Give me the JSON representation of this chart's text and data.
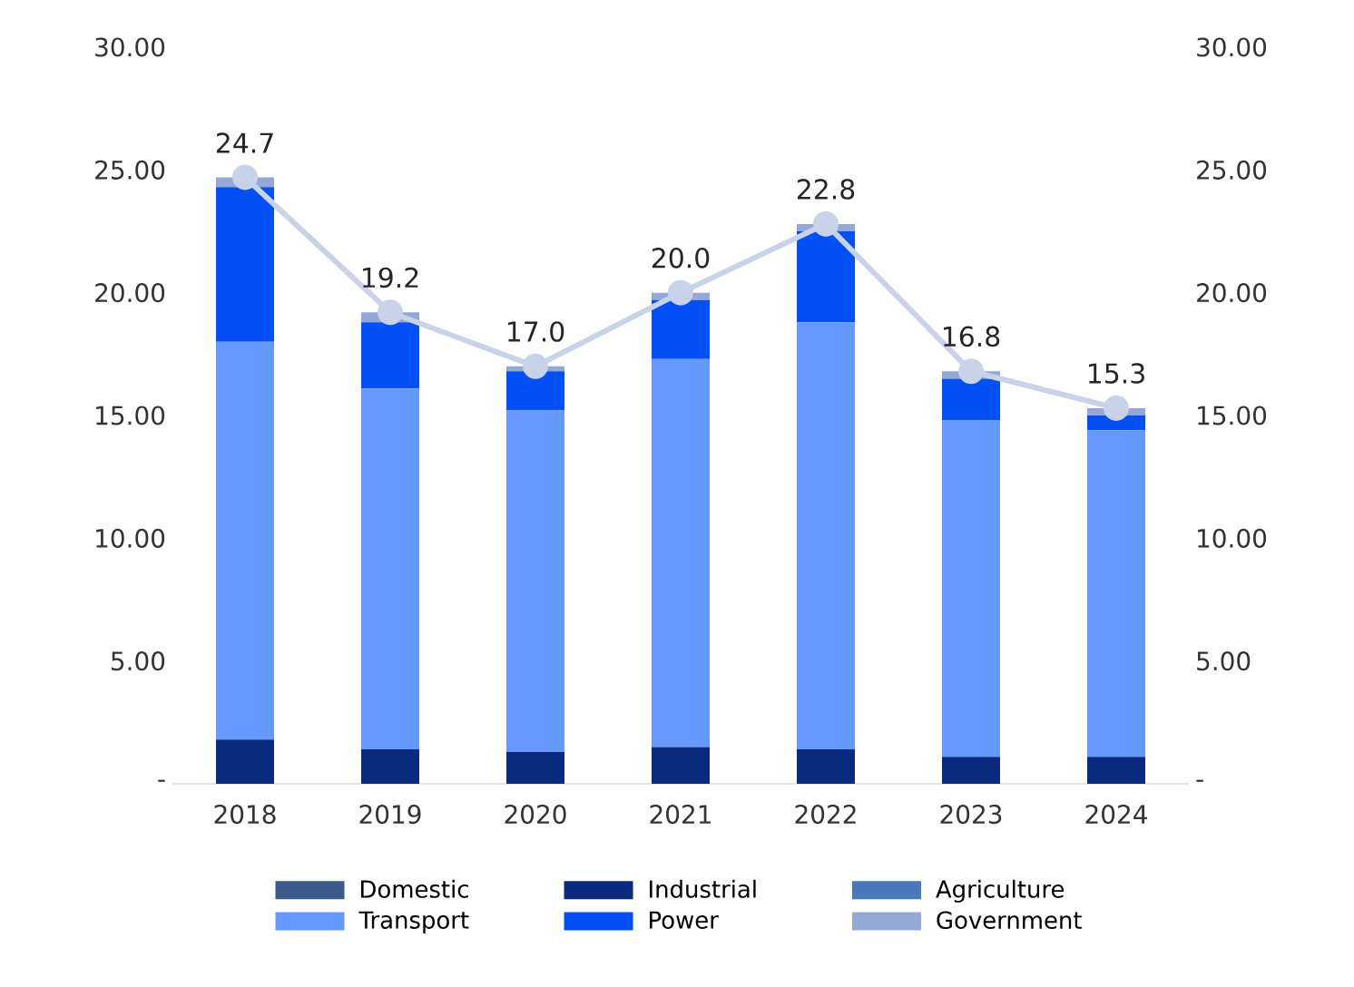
{
  "chart_data": {
    "type": "bar",
    "stacked": true,
    "categories": [
      "2018",
      "2019",
      "2020",
      "2021",
      "2022",
      "2023",
      "2024"
    ],
    "series": [
      {
        "name": "Domestic",
        "color": "#3a5a8c",
        "values": [
          0,
          0,
          0,
          0,
          0,
          0,
          0
        ]
      },
      {
        "name": "Industrial",
        "color": "#0a2a80",
        "values": [
          1.8,
          1.4,
          1.3,
          1.5,
          1.4,
          1.1,
          1.1
        ]
      },
      {
        "name": "Agriculture",
        "color": "#4a78b8",
        "values": [
          0,
          0,
          0,
          0,
          0,
          0,
          0
        ]
      },
      {
        "name": "Transport",
        "color": "#6699ff",
        "values": [
          16.2,
          14.7,
          13.9,
          15.8,
          17.4,
          13.7,
          13.3
        ]
      },
      {
        "name": "Power",
        "color": "#0050f5",
        "values": [
          6.3,
          2.7,
          1.6,
          2.4,
          3.7,
          1.7,
          0.6
        ]
      },
      {
        "name": "Government",
        "color": "#93a8d4",
        "values": [
          0.4,
          0.4,
          0.2,
          0.3,
          0.3,
          0.3,
          0.3
        ]
      },
      {
        "type": "line",
        "axis": "y2",
        "color": "#c8d2e8",
        "marker": "circle",
        "values": [
          24.7,
          19.2,
          17.0,
          20.0,
          22.8,
          16.8,
          15.3
        ],
        "value_labels": [
          "24.7",
          "19.2",
          "17.0",
          "20.0",
          "22.8",
          "16.8",
          "15.3"
        ]
      }
    ],
    "ylim": [
      0,
      30
    ],
    "yticks": [
      {
        "value": 0,
        "label": "-"
      },
      {
        "value": 5,
        "label": "5.00"
      },
      {
        "value": 10,
        "label": "10.00"
      },
      {
        "value": 15,
        "label": "15.00"
      },
      {
        "value": 20,
        "label": "20.00"
      },
      {
        "value": 25,
        "label": "25.00"
      },
      {
        "value": 30,
        "label": "30.00"
      }
    ],
    "y2lim": [
      0,
      30
    ],
    "y2ticks": [
      {
        "value": 0,
        "label": "-"
      },
      {
        "value": 5,
        "label": "5.00"
      },
      {
        "value": 10,
        "label": "10.00"
      },
      {
        "value": 15,
        "label": "15.00"
      },
      {
        "value": 20,
        "label": "20.00"
      },
      {
        "value": 25,
        "label": "25.00"
      },
      {
        "value": 30,
        "label": "30.00"
      }
    ],
    "grid": false,
    "legend": "bottom"
  }
}
